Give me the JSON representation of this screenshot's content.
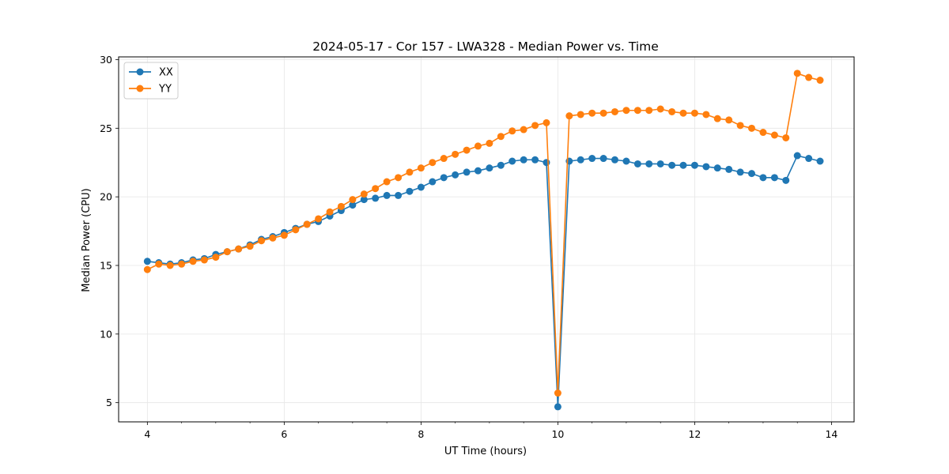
{
  "chart_data": {
    "type": "line",
    "title": "2024-05-17 - Cor 157 - LWA328 - Median Power vs. Time",
    "xlabel": "UT Time (hours)",
    "ylabel": "Median Power (CPU)",
    "xlim": [
      3.58,
      14.33
    ],
    "ylim": [
      3.6,
      30.2
    ],
    "xticks": [
      4,
      6,
      8,
      10,
      12,
      14
    ],
    "yticks": [
      5,
      10,
      15,
      20,
      25,
      30
    ],
    "grid": true,
    "legend_position": "upper-left",
    "x": [
      4.0,
      4.167,
      4.333,
      4.5,
      4.667,
      4.833,
      5.0,
      5.167,
      5.333,
      5.5,
      5.667,
      5.833,
      6.0,
      6.167,
      6.333,
      6.5,
      6.667,
      6.833,
      7.0,
      7.167,
      7.333,
      7.5,
      7.667,
      7.833,
      8.0,
      8.167,
      8.333,
      8.5,
      8.667,
      8.833,
      9.0,
      9.167,
      9.333,
      9.5,
      9.667,
      9.833,
      10.0,
      10.167,
      10.333,
      10.5,
      10.667,
      10.833,
      11.0,
      11.167,
      11.333,
      11.5,
      11.667,
      11.833,
      12.0,
      12.167,
      12.333,
      12.5,
      12.667,
      12.833,
      13.0,
      13.167,
      13.333,
      13.5,
      13.667,
      13.833
    ],
    "series": [
      {
        "name": "XX",
        "color": "#1f77b4",
        "values": [
          15.3,
          15.2,
          15.1,
          15.2,
          15.4,
          15.5,
          15.8,
          16.0,
          16.2,
          16.5,
          16.9,
          17.1,
          17.4,
          17.7,
          18.0,
          18.2,
          18.6,
          19.0,
          19.4,
          19.8,
          19.9,
          20.1,
          20.1,
          20.4,
          20.7,
          21.1,
          21.4,
          21.6,
          21.8,
          21.9,
          22.1,
          22.3,
          22.6,
          22.7,
          22.7,
          22.5,
          4.7,
          22.6,
          22.7,
          22.8,
          22.8,
          22.7,
          22.6,
          22.4,
          22.4,
          22.4,
          22.3,
          22.3,
          22.3,
          22.2,
          22.1,
          22.0,
          21.8,
          21.7,
          21.4,
          21.4,
          21.2,
          23.0,
          22.8,
          22.6
        ]
      },
      {
        "name": "YY",
        "color": "#ff7f0e",
        "values": [
          14.7,
          15.1,
          15.0,
          15.1,
          15.3,
          15.4,
          15.6,
          16.0,
          16.2,
          16.4,
          16.8,
          17.0,
          17.2,
          17.6,
          18.0,
          18.4,
          18.9,
          19.3,
          19.8,
          20.2,
          20.6,
          21.1,
          21.4,
          21.8,
          22.1,
          22.5,
          22.8,
          23.1,
          23.4,
          23.7,
          23.9,
          24.4,
          24.8,
          24.9,
          25.2,
          25.4,
          5.7,
          25.9,
          26.0,
          26.1,
          26.1,
          26.2,
          26.3,
          26.3,
          26.3,
          26.4,
          26.2,
          26.1,
          26.1,
          26.0,
          25.7,
          25.6,
          25.2,
          25.0,
          24.7,
          24.5,
          24.3,
          29.0,
          28.7,
          28.5
        ]
      }
    ]
  }
}
